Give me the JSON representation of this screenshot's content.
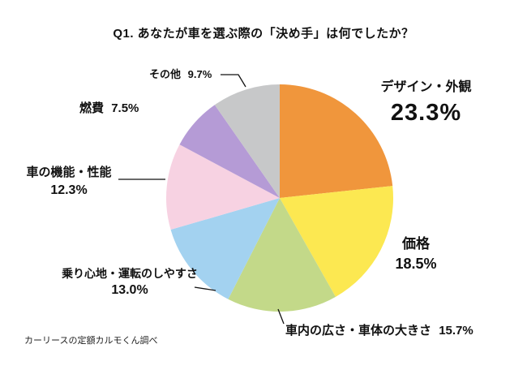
{
  "source_note": "カーリースの定額カルモくん調べ",
  "chart_data": {
    "type": "pie",
    "title": "Q1. あなたが車を選ぶ際の「決め手」は何でしたか？",
    "start_angle": "top",
    "direction": "clockwise",
    "legend": "none",
    "slices": [
      {
        "key": "design-exterior",
        "label": "デザイン・外観",
        "value": 23.3,
        "display": "23.3%",
        "color": "#F0963C"
      },
      {
        "key": "price",
        "label": "価格",
        "value": 18.5,
        "display": "18.5%",
        "color": "#FCE851"
      },
      {
        "key": "interior-size",
        "label": "車内の広さ・車体の大きさ",
        "value": 15.7,
        "display": "15.7%",
        "color": "#C3D989"
      },
      {
        "key": "ride-comfort",
        "label": "乗り心地・運転のしやすさ",
        "value": 13.0,
        "display": "13.0%",
        "color": "#A3D2F0"
      },
      {
        "key": "features-performance",
        "label": "車の機能・性能",
        "value": 12.3,
        "display": "12.3%",
        "color": "#F7D2E2"
      },
      {
        "key": "fuel-economy",
        "label": "燃費",
        "value": 7.5,
        "display": "7.5%",
        "color": "#B59BD6"
      },
      {
        "key": "other",
        "label": "その他",
        "value": 9.7,
        "display": "9.7%",
        "color": "#C7C8C9"
      }
    ]
  }
}
